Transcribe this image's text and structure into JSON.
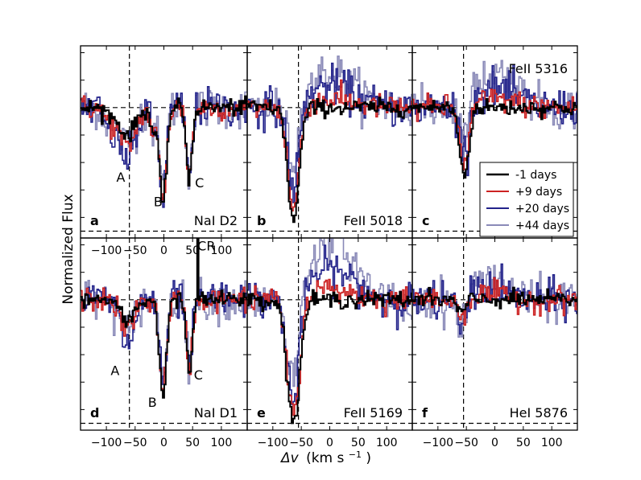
{
  "chart_data": {
    "type": "line",
    "ylabel": "Normalized Flux",
    "xlabel_prefix": "Δv",
    "xlabel_units": "(km s⁻¹)",
    "xlabel_superscript": "−1",
    "xlabel_unit_text": "(km s",
    "legend": {
      "placement": "panel-c",
      "entries": [
        {
          "label": "-1 days",
          "color": "#000000"
        },
        {
          "label": "+9 days",
          "color": "#cc2222"
        },
        {
          "label": "+20 days",
          "color": "#22228a"
        },
        {
          "label": "+44 days",
          "color": "#8a8ab8"
        }
      ]
    },
    "series_colors": [
      "#000000",
      "#cc2222",
      "#22228a",
      "#8a8ab8"
    ],
    "panels": [
      {
        "id": "a",
        "title": "NaI D2",
        "xlim": [
          -145,
          145
        ],
        "xticks": [
          -100,
          -50,
          0,
          50,
          100
        ],
        "vline": -60,
        "labels": [
          {
            "text": "A",
            "x": -75,
            "y": 0.46
          },
          {
            "text": "B",
            "x": -10,
            "y": 0.28
          },
          {
            "text": "C",
            "x": 62,
            "y": 0.42
          }
        ],
        "features": [
          {
            "center": -65,
            "width": 14,
            "depth": [
              0.22,
              0.32,
              0.42,
              0.3
            ]
          },
          {
            "center": -95,
            "width": 10,
            "depth": [
              0.04,
              0.1,
              0.16,
              0.12
            ]
          },
          {
            "center": -3,
            "width": 6,
            "depth": [
              0.8,
              0.76,
              0.72,
              0.64
            ]
          },
          {
            "center": -20,
            "width": 5,
            "depth": [
              0.18,
              0.2,
              0.2,
              0.16
            ]
          },
          {
            "center": 43,
            "width": 5,
            "depth": [
              0.58,
              0.55,
              0.6,
              0.5
            ]
          }
        ]
      },
      {
        "id": "b",
        "title": "FeII 5018",
        "xlim": [
          -145,
          145
        ],
        "xticks": [],
        "vline": -55,
        "labels": [],
        "features": [
          {
            "center": -65,
            "width": 10,
            "depth": [
              0.92,
              0.84,
              0.68,
              0.52
            ]
          }
        ],
        "emission": {
          "center": 0,
          "width": 40,
          "height": [
            0.0,
            0.06,
            0.16,
            0.26
          ]
        }
      },
      {
        "id": "c",
        "title": "FeII 5316",
        "xlim": [
          -145,
          145
        ],
        "xticks": [],
        "vline": -55,
        "labels": [],
        "features": [
          {
            "center": -55,
            "width": 8,
            "depth": [
              0.55,
              0.48,
              0.4,
              0.3
            ]
          }
        ],
        "emission": {
          "center": 0,
          "width": 35,
          "height": [
            0.0,
            0.06,
            0.14,
            0.26
          ]
        }
      },
      {
        "id": "d",
        "title": "NaI D1",
        "xlim": [
          -145,
          145
        ],
        "xticks": [
          -100,
          -50,
          0,
          50,
          100
        ],
        "vline": -60,
        "labels": [
          {
            "text": "A",
            "x": -85,
            "y": 0.45
          },
          {
            "text": "B",
            "x": -20,
            "y": 0.22
          },
          {
            "text": "C",
            "x": 60,
            "y": 0.42
          },
          {
            "text": "CR",
            "x": 74,
            "y": 1.36
          }
        ],
        "features": [
          {
            "center": -65,
            "width": 12,
            "depth": [
              0.18,
              0.24,
              0.36,
              0.28
            ]
          },
          {
            "center": -3,
            "width": 6,
            "depth": [
              0.78,
              0.76,
              0.72,
              0.62
            ]
          },
          {
            "center": 43,
            "width": 5,
            "depth": [
              0.6,
              0.56,
              0.56,
              0.48
            ]
          }
        ]
      },
      {
        "id": "e",
        "title": "FeII 5169",
        "xlim": [
          -145,
          145
        ],
        "xticks": [
          -100,
          -50,
          0,
          50,
          100
        ],
        "vline": -55,
        "labels": [],
        "features": [
          {
            "center": -65,
            "width": 11,
            "depth": [
              1.0,
              0.96,
              0.88,
              0.76
            ]
          }
        ],
        "emission": {
          "center": 0,
          "width": 40,
          "height": [
            0.0,
            0.08,
            0.22,
            0.44
          ]
        }
      },
      {
        "id": "f",
        "title": "HeI 5876",
        "xlim": [
          -145,
          145
        ],
        "xticks": [
          -100,
          -50,
          0,
          50,
          100
        ],
        "vline": -55,
        "labels": [],
        "features": [
          {
            "center": -60,
            "width": 8,
            "depth": [
              0.1,
              0.12,
              0.22,
              0.26
            ]
          }
        ],
        "emission": {
          "center": -10,
          "width": 25,
          "height": [
            0.0,
            0.04,
            0.1,
            0.18
          ]
        }
      }
    ],
    "ylim": [
      0.05,
      1.45
    ],
    "continuum": 1.0,
    "zero_line": 0.1
  }
}
